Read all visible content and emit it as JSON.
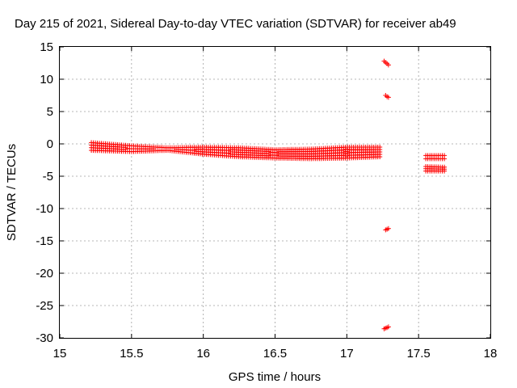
{
  "chart_data": {
    "type": "scatter",
    "title": "Day 215 of 2021, Sidereal Day-to-day VTEC variation (SDTVAR) for receiver ab49",
    "xlabel": "GPS time / hours",
    "ylabel": "SDTVAR / TECUs",
    "xlim": [
      15,
      18
    ],
    "ylim": [
      -30,
      15
    ],
    "x_ticks": [
      "15",
      "15.5",
      "16",
      "16.5",
      "17",
      "17.5",
      "18"
    ],
    "y_ticks": [
      "15",
      "10",
      "5",
      "0",
      "-5",
      "-10",
      "-15",
      "-20",
      "-25",
      "-30"
    ],
    "grid": true,
    "marker": "+",
    "color": "#ff0000",
    "bands": [
      {
        "x_start": 15.22,
        "x_end": 17.23,
        "upper": [
          [
            15.22,
            0.2
          ],
          [
            15.5,
            -0.3
          ],
          [
            15.75,
            -0.6
          ],
          [
            16.0,
            -0.5
          ],
          [
            16.25,
            -0.6
          ],
          [
            16.5,
            -0.9
          ],
          [
            16.75,
            -0.8
          ],
          [
            17.0,
            -0.5
          ],
          [
            17.23,
            -0.5
          ]
        ],
        "lower": [
          [
            15.22,
            -1.0
          ],
          [
            15.5,
            -1.2
          ],
          [
            15.75,
            -1.0
          ],
          [
            16.0,
            -1.6
          ],
          [
            16.25,
            -2.0
          ],
          [
            16.5,
            -2.2
          ],
          [
            16.75,
            -2.3
          ],
          [
            17.0,
            -2.2
          ],
          [
            17.23,
            -2.0
          ]
        ]
      },
      {
        "x_start": 17.55,
        "x_end": 17.68,
        "upper": [
          [
            17.55,
            -1.8
          ],
          [
            17.68,
            -1.8
          ]
        ],
        "lower": [
          [
            17.55,
            -2.3
          ],
          [
            17.68,
            -2.3
          ]
        ]
      },
      {
        "x_start": 17.55,
        "x_end": 17.68,
        "upper": [
          [
            17.55,
            -3.5
          ],
          [
            17.68,
            -3.6
          ]
        ],
        "lower": [
          [
            17.55,
            -4.2
          ],
          [
            17.68,
            -4.2
          ]
        ]
      }
    ],
    "points": [
      {
        "x": 17.26,
        "y": 12.8
      },
      {
        "x": 17.27,
        "y": 12.6
      },
      {
        "x": 17.28,
        "y": 12.4
      },
      {
        "x": 17.29,
        "y": 12.2
      },
      {
        "x": 17.27,
        "y": 7.5
      },
      {
        "x": 17.28,
        "y": 7.3
      },
      {
        "x": 17.29,
        "y": 7.2
      },
      {
        "x": 17.27,
        "y": -13.3
      },
      {
        "x": 17.28,
        "y": -13.2
      },
      {
        "x": 17.29,
        "y": -13.1
      },
      {
        "x": 17.26,
        "y": -28.6
      },
      {
        "x": 17.27,
        "y": -28.5
      },
      {
        "x": 17.28,
        "y": -28.4
      },
      {
        "x": 17.29,
        "y": -28.3
      }
    ]
  }
}
